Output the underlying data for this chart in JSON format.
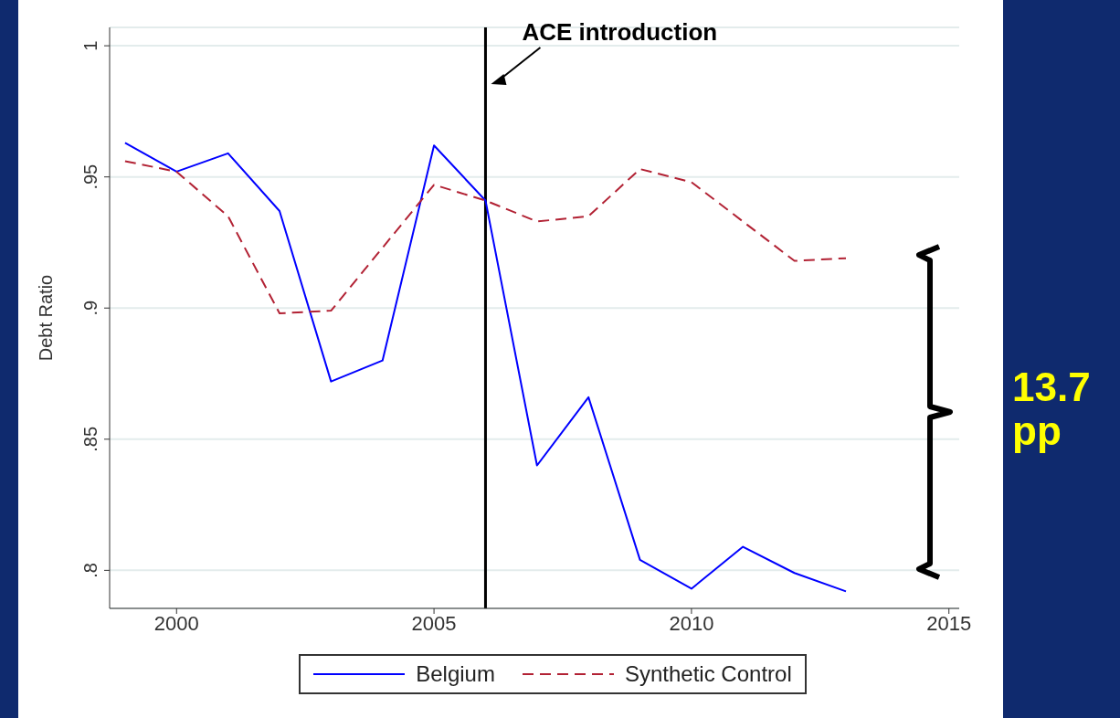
{
  "chart_data": {
    "type": "line",
    "ylabel": "Debt Ratio",
    "x": [
      1999,
      2000,
      2001,
      2002,
      2003,
      2004,
      2005,
      2006,
      2007,
      2008,
      2009,
      2010,
      2011,
      2012,
      2013
    ],
    "series": [
      {
        "name": "Belgium",
        "color": "#0000ff",
        "line_style": "solid",
        "values": [
          0.963,
          0.952,
          0.959,
          0.937,
          0.872,
          0.88,
          0.962,
          0.941,
          0.84,
          0.866,
          0.804,
          0.793,
          0.809,
          0.799,
          0.792
        ]
      },
      {
        "name": "Synthetic Control",
        "color": "#b22234",
        "line_style": "dashed",
        "values": [
          0.956,
          0.952,
          0.935,
          0.898,
          0.899,
          0.923,
          0.947,
          0.941,
          0.933,
          0.935,
          0.953,
          0.948,
          0.933,
          0.918,
          0.919
        ]
      }
    ],
    "xlim": [
      1998.7,
      2015.2
    ],
    "xticks": [
      2000,
      2005,
      2010,
      2015
    ],
    "ylim": [
      0.7855,
      1.007
    ],
    "yticks": [
      {
        "value": 0.8,
        "label": ".8"
      },
      {
        "value": 0.85,
        "label": ".85"
      },
      {
        "value": 0.9,
        "label": ".9"
      },
      {
        "value": 0.95,
        "label": ".95"
      },
      1
    ],
    "grid": "y",
    "legend": "bottom",
    "marker": "none",
    "ref_lines": [
      {
        "axis": "x",
        "value": 2006,
        "label": "ACE introduction",
        "color": "#000000"
      }
    ],
    "annotations": [
      "13.7 pp"
    ]
  }
}
